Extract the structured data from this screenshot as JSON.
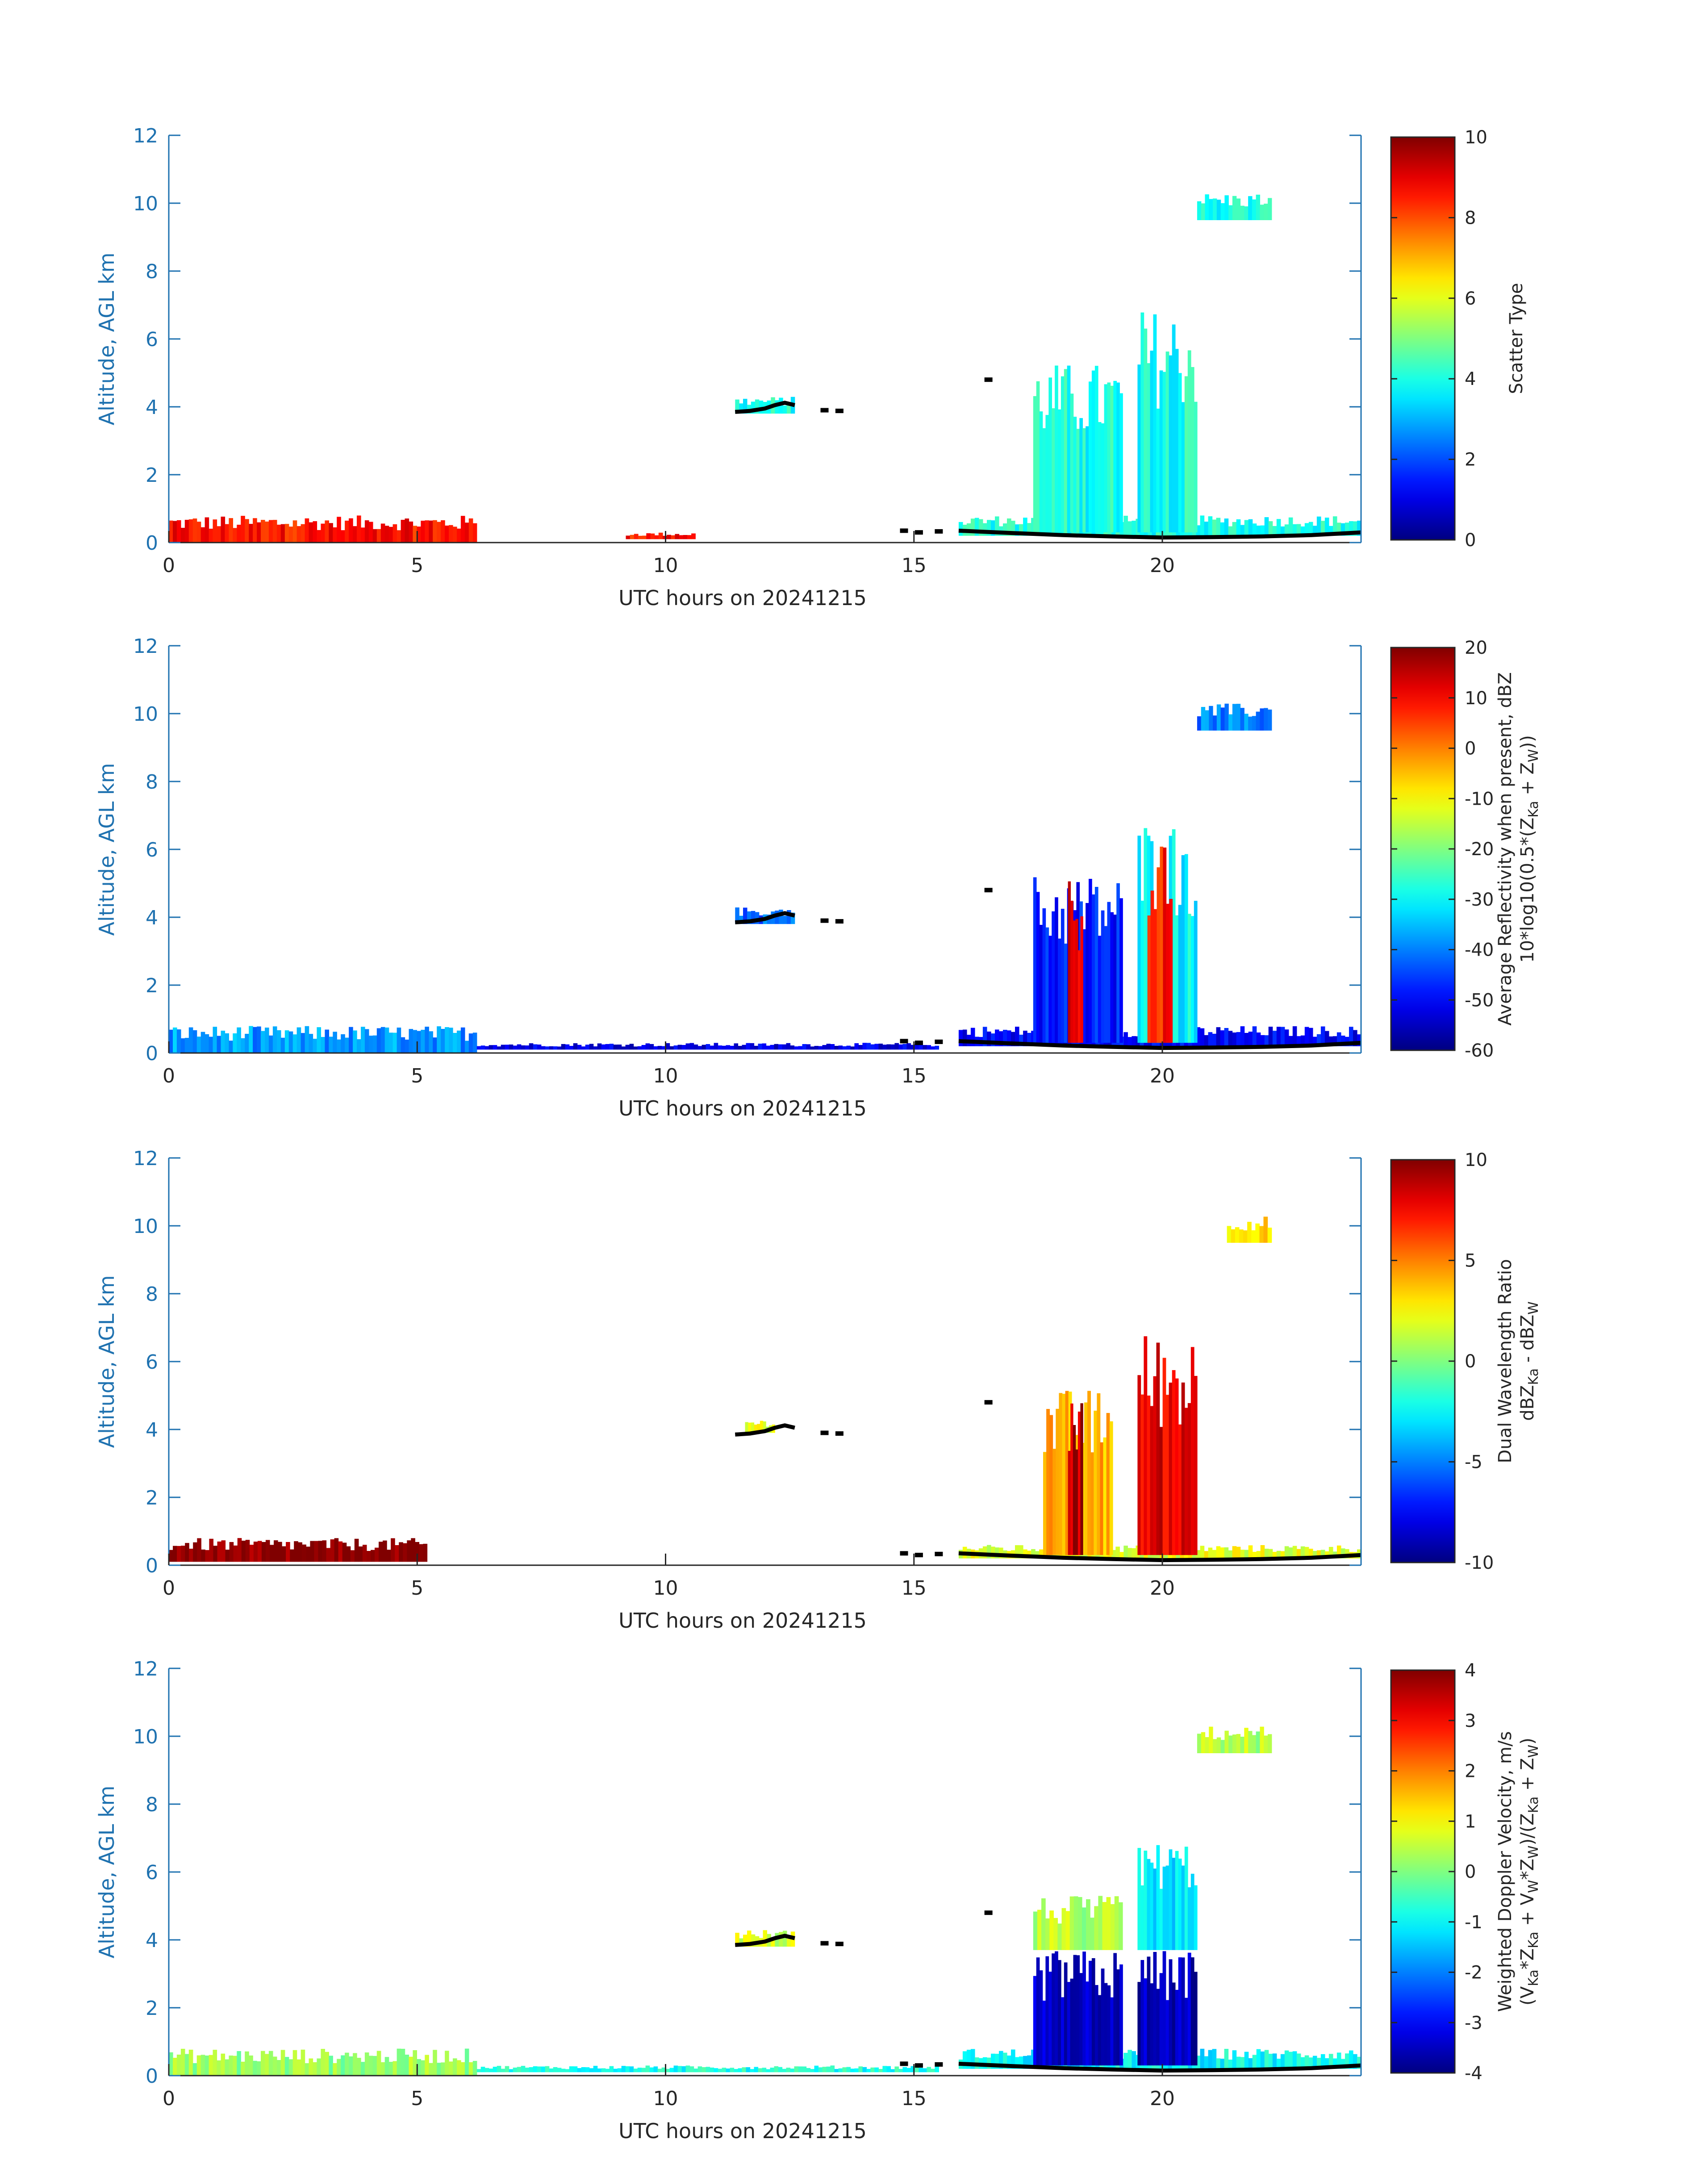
{
  "figure": {
    "colors": {
      "axis": "#1f72b0",
      "text_dark": "#262626",
      "ground_trace": "#000000",
      "background": "#ffffff"
    },
    "colormap": "jet"
  },
  "chart_data": [
    {
      "type": "heatmap",
      "title": "",
      "xlabel": "UTC hours on 20241215",
      "ylabel": "Altitude, AGL km",
      "xlim": [
        0,
        24
      ],
      "ylim": [
        0,
        12
      ],
      "xticks": [
        "0",
        "5",
        "10",
        "15",
        "20"
      ],
      "yticks": [
        "0",
        "2",
        "4",
        "6",
        "8",
        "10",
        "12"
      ],
      "colorbar": {
        "label_lines": [
          "Scatter Type"
        ],
        "min": 0,
        "max": 10,
        "ticks": [
          "0",
          "2",
          "4",
          "6",
          "8",
          "10"
        ]
      },
      "features": [
        {
          "x": [
            0,
            6.2
          ],
          "y": [
            0,
            0.8
          ],
          "value": 8.6,
          "desc": "low layer"
        },
        {
          "x": [
            9.2,
            10.6
          ],
          "y": [
            0.1,
            0.3
          ],
          "value": 8.6,
          "desc": "sparse returns"
        },
        {
          "x": [
            11.4,
            12.6
          ],
          "y": [
            3.8,
            4.3
          ],
          "value": 4,
          "desc": "mid-level layer"
        },
        {
          "x": [
            15.9,
            24
          ],
          "y": [
            0.2,
            0.8
          ],
          "value": 4,
          "desc": "surface layer"
        },
        {
          "x": [
            17.4,
            19.2
          ],
          "y": [
            0.3,
            5.3
          ],
          "value": 4,
          "desc": "cloud column"
        },
        {
          "x": [
            19.5,
            20.7
          ],
          "y": [
            0.3,
            6.9
          ],
          "value": 4,
          "desc": "cloud column"
        },
        {
          "x": [
            20.7,
            22.2
          ],
          "y": [
            9.5,
            10.3
          ],
          "value": 4,
          "desc": "high cloud"
        }
      ]
    },
    {
      "type": "heatmap",
      "title": "",
      "xlabel": "UTC hours on 20241215",
      "ylabel": "Altitude, AGL km",
      "xlim": [
        0,
        24
      ],
      "ylim": [
        0,
        12
      ],
      "xticks": [
        "0",
        "5",
        "10",
        "15",
        "20"
      ],
      "yticks": [
        "0",
        "2",
        "4",
        "6",
        "8",
        "10",
        "12"
      ],
      "colorbar": {
        "label_lines": [
          "Average Reflectivity when present, dBZ",
          "10*log10(0.5*(Z<sub>Ka</sub> + Z<sub>W</sub>))"
        ],
        "min": -60,
        "max": 20,
        "ticks": [
          "-60",
          "-50",
          "-40",
          "-30",
          "-20",
          "-10",
          "0",
          "10",
          "20"
        ]
      },
      "features": [
        {
          "x": [
            0,
            6.2
          ],
          "y": [
            0,
            0.8
          ],
          "value": -38,
          "desc": "low layer"
        },
        {
          "x": [
            6.2,
            15.5
          ],
          "y": [
            0.1,
            0.3
          ],
          "value": -52,
          "desc": "sparse returns"
        },
        {
          "x": [
            11.4,
            12.6
          ],
          "y": [
            3.8,
            4.3
          ],
          "value": -42,
          "desc": "mid-level layer"
        },
        {
          "x": [
            15.9,
            24
          ],
          "y": [
            0.2,
            0.8
          ],
          "value": -50,
          "desc": "surface layer"
        },
        {
          "x": [
            17.4,
            19.2
          ],
          "y": [
            0.3,
            5.3
          ],
          "value": -48,
          "desc": "cloud column"
        },
        {
          "x": [
            19.5,
            20.7
          ],
          "y": [
            0.3,
            6.9
          ],
          "value": -30,
          "desc": "cloud column"
        },
        {
          "x": [
            18.1,
            18.4
          ],
          "y": [
            0.3,
            5.2
          ],
          "value": 12,
          "desc": "precipitation shaft"
        },
        {
          "x": [
            19.7,
            20.2
          ],
          "y": [
            0.3,
            6.5
          ],
          "value": 8,
          "desc": "precipitation shaft"
        },
        {
          "x": [
            20.7,
            22.2
          ],
          "y": [
            9.5,
            10.3
          ],
          "value": -40,
          "desc": "high cloud"
        }
      ]
    },
    {
      "type": "heatmap",
      "title": "",
      "xlabel": "UTC hours on 20241215",
      "ylabel": "Altitude, AGL km",
      "xlim": [
        0,
        24
      ],
      "ylim": [
        0,
        12
      ],
      "xticks": [
        "0",
        "5",
        "10",
        "15",
        "20"
      ],
      "yticks": [
        "0",
        "2",
        "4",
        "6",
        "8",
        "10",
        "12"
      ],
      "colorbar": {
        "label_lines": [
          "Dual Wavelength Ratio",
          "dBZ<sub>Ka</sub> - dBZ<sub>W</sub>"
        ],
        "min": -10,
        "max": 10,
        "ticks": [
          "-10",
          "-5",
          "0",
          "5",
          "10"
        ]
      },
      "features": [
        {
          "x": [
            0,
            5.2
          ],
          "y": [
            0.1,
            0.8
          ],
          "value": 10,
          "desc": "low layer"
        },
        {
          "x": [
            11.6,
            12.2
          ],
          "y": [
            3.9,
            4.3
          ],
          "value": 2,
          "desc": "mid-level layer"
        },
        {
          "x": [
            15.9,
            24
          ],
          "y": [
            0.2,
            0.6
          ],
          "value": 2,
          "desc": "surface layer"
        },
        {
          "x": [
            17.6,
            19.0
          ],
          "y": [
            0.3,
            5.2
          ],
          "value": 4,
          "desc": "cloud column"
        },
        {
          "x": [
            18.1,
            18.4
          ],
          "y": [
            0.3,
            5.4
          ],
          "value": 9,
          "desc": "precipitation shaft"
        },
        {
          "x": [
            19.5,
            20.7
          ],
          "y": [
            0.3,
            6.9
          ],
          "value": 8,
          "desc": "cloud column"
        },
        {
          "x": [
            21.3,
            22.2
          ],
          "y": [
            9.5,
            10.3
          ],
          "value": 3,
          "desc": "high cloud"
        }
      ]
    },
    {
      "type": "heatmap",
      "title": "",
      "xlabel": "UTC hours on 20241215",
      "ylabel": "Altitude, AGL km",
      "xlim": [
        0,
        24
      ],
      "ylim": [
        0,
        12
      ],
      "xticks": [
        "0",
        "5",
        "10",
        "15",
        "20"
      ],
      "yticks": [
        "0",
        "2",
        "4",
        "6",
        "8",
        "10",
        "12"
      ],
      "colorbar": {
        "label_lines": [
          "Weighted Doppler Velocity, m/s",
          "(V<sub>Ka</sub>*Z<sub>Ka</sub> + V<sub>W</sub>*Z<sub>W</sub>)/(Z<sub>Ka</sub> + Z<sub>W</sub>)"
        ],
        "min": -4,
        "max": 4,
        "ticks": [
          "-4",
          "-3",
          "-2",
          "-1",
          "0",
          "1",
          "2",
          "3",
          "4"
        ]
      },
      "features": [
        {
          "x": [
            0,
            6.2
          ],
          "y": [
            0,
            0.8
          ],
          "value": 0.2,
          "desc": "low layer"
        },
        {
          "x": [
            6.2,
            15.5
          ],
          "y": [
            0.1,
            0.3
          ],
          "value": -0.8,
          "desc": "sparse returns"
        },
        {
          "x": [
            11.4,
            12.6
          ],
          "y": [
            3.8,
            4.3
          ],
          "value": 0.6,
          "desc": "mid-level layer"
        },
        {
          "x": [
            15.9,
            24
          ],
          "y": [
            0.2,
            0.8
          ],
          "value": -1,
          "desc": "surface layer"
        },
        {
          "x": [
            17.4,
            19.2
          ],
          "y": [
            3.7,
            5.3
          ],
          "value": 0.4,
          "desc": "cloud top"
        },
        {
          "x": [
            17.4,
            19.2
          ],
          "y": [
            0.3,
            3.7
          ],
          "value": -3.4,
          "desc": "falling precipitation"
        },
        {
          "x": [
            19.5,
            20.7
          ],
          "y": [
            3.7,
            6.9
          ],
          "value": -1.2,
          "desc": "cloud top"
        },
        {
          "x": [
            19.5,
            20.7
          ],
          "y": [
            0.3,
            3.7
          ],
          "value": -3.6,
          "desc": "falling precipitation"
        },
        {
          "x": [
            20.7,
            22.2
          ],
          "y": [
            9.5,
            10.3
          ],
          "value": 0.4,
          "desc": "high cloud"
        }
      ]
    }
  ]
}
